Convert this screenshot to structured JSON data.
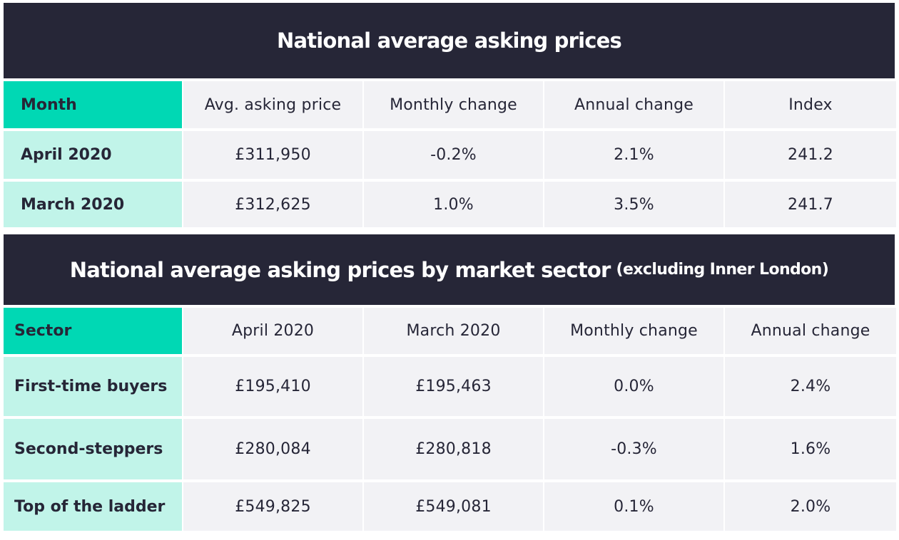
{
  "table1": {
    "title": "National average asking prices",
    "headers": [
      "Month",
      "Avg. asking price",
      "Monthly change",
      "Annual change",
      "Index"
    ],
    "rows": [
      [
        "April 2020",
        "£311,950",
        "-0.2%",
        "2.1%",
        "241.2"
      ],
      [
        "March 2020",
        "£312,625",
        "1.0%",
        "3.5%",
        "241.7"
      ]
    ]
  },
  "table2": {
    "title": "National average asking prices by market sector",
    "subtitle": "(excluding Inner London)",
    "headers": [
      "Sector",
      "April 2020",
      "March 2020",
      "Monthly change",
      "Annual change"
    ],
    "rows": [
      [
        "First-time buyers",
        "£195,410",
        "£195,463",
        "0.0%",
        "2.4%"
      ],
      [
        "Second-steppers",
        "£280,084",
        "£280,818",
        "-0.3%",
        "1.6%"
      ],
      [
        "Top of the ladder",
        "£549,825",
        "£549,081",
        "0.1%",
        "2.0%"
      ]
    ]
  },
  "colors": {
    "banner": "#262637",
    "header_key": "#00d8b4",
    "row_key": "#c1f4e9",
    "cell": "#f2f2f5"
  }
}
